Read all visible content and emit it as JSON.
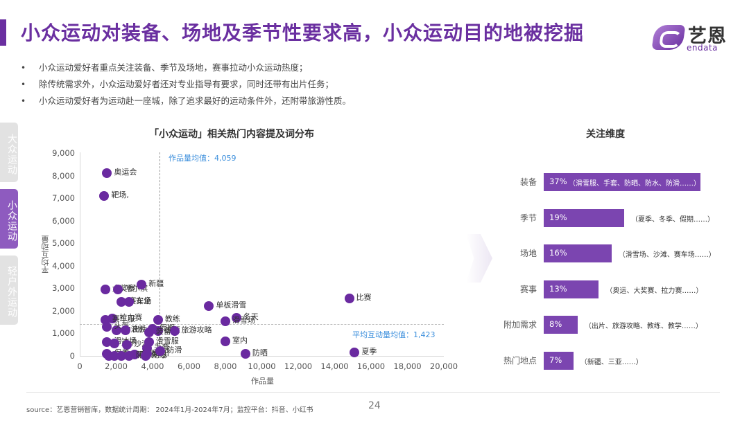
{
  "header": {
    "title": "小众运动对装备、场地及季节性要求高，小众运动目的地被挖掘",
    "logo_cn": "艺恩",
    "logo_en": "endata"
  },
  "bullets": [
    "小众运动爱好者重点关注装备、季节及场地，赛事拉动小众运动热度；",
    "除传统需求外，小众运动爱好者还对专业指导有要求，同时还带有出片任务；",
    "小众运动爱好者为运动赴一座城，除了追求最好的运动条件外，还附带旅游性质。"
  ],
  "side_tabs": [
    {
      "label": "大众运动",
      "active": false
    },
    {
      "label": "小众运动",
      "active": true
    },
    {
      "label": "轻户外运动",
      "active": false
    }
  ],
  "colors": {
    "brand": "#6a2fa0",
    "point": "#6a2aa0",
    "bar": "#7b45b0",
    "avg_label": "#3c8fdc",
    "tab_active": "#8e5bbf",
    "tab_inactive": "#e2e2e2"
  },
  "chart_data": [
    {
      "type": "scatter",
      "title": "「小众运动」相关热门内容提及词分布",
      "xlabel": "作品量",
      "ylabel": "平均互动量",
      "xlim": [
        0,
        20000
      ],
      "ylim": [
        0,
        9000
      ],
      "x_ticks": [
        "0",
        "2,000",
        "4,000",
        "6,000",
        "8,000",
        "10,000",
        "12,000",
        "14,000",
        "16,000",
        "18,000",
        "20,000"
      ],
      "y_ticks": [
        "0",
        "1,000",
        "2,000",
        "3,000",
        "4,000",
        "5,000",
        "6,000",
        "7,000",
        "8,000",
        "9,000"
      ],
      "reference_lines": {
        "x_mean_label": "作品量均值：4,059",
        "x_mean": 4059,
        "y_mean_label": "平均互动量均值：1,423",
        "y_mean": 1423
      },
      "points": [
        {
          "label": "奥运会",
          "x": 1500,
          "y": 8100
        },
        {
          "label": "靶场,",
          "x": 1350,
          "y": 7100
        },
        {
          "label": "大奖赛",
          "x": 1400,
          "y": 2950
        },
        {
          "label": "哈尔滨",
          "x": 2100,
          "y": 2950
        },
        {
          "label": "新疆",
          "x": 3400,
          "y": 3150
        },
        {
          "label": "拉力赛",
          "x": 1800,
          "y": 1650
        },
        {
          "label": "赛车场",
          "x": 2300,
          "y": 2400
        },
        {
          "label": "安全",
          "x": 2700,
          "y": 2400
        },
        {
          "label": "赛车服",
          "x": 1400,
          "y": 1600
        },
        {
          "label": "冲浪板",
          "x": 2000,
          "y": 1150
        },
        {
          "label": "头盔",
          "x": 1500,
          "y": 1300
        },
        {
          "label": "出片",
          "x": 2500,
          "y": 1150
        },
        {
          "label": "教练",
          "x": 4300,
          "y": 1600
        },
        {
          "label": "假期",
          "x": 4000,
          "y": 1200
        },
        {
          "label": "三亚",
          "x": 4300,
          "y": 1100
        },
        {
          "label": "旅游攻略",
          "x": 5200,
          "y": 1100
        },
        {
          "label": "装备",
          "x": 3800,
          "y": 1050
        },
        {
          "label": "滑冰场",
          "x": 1500,
          "y": 600
        },
        {
          "label": "速干",
          "x": 1900,
          "y": 550
        },
        {
          "label": "沙滩",
          "x": 2600,
          "y": 500
        },
        {
          "label": "滑雪服",
          "x": 3800,
          "y": 600
        },
        {
          "label": "手套",
          "x": 3700,
          "y": 350
        },
        {
          "label": "保养",
          "x": 1500,
          "y": 100
        },
        {
          "label": "羽绒服",
          "x": 1600,
          "y": 0
        },
        {
          "label": "马术帽",
          "x": 1900,
          "y": 0
        },
        {
          "label": "防风",
          "x": 2300,
          "y": 0
        },
        {
          "label": "保暖",
          "x": 3000,
          "y": 50
        },
        {
          "label": "防紫外线",
          "x": 2700,
          "y": 0
        },
        {
          "label": "防水",
          "x": 3600,
          "y": 0
        },
        {
          "label": "遮阳",
          "x": 3700,
          "y": 100
        },
        {
          "label": "防滑",
          "x": 4400,
          "y": 200
        },
        {
          "label": "单板滑雪",
          "x": 7100,
          "y": 2200
        },
        {
          "label": "冬天",
          "x": 8600,
          "y": 1700
        },
        {
          "label": "滑雪场",
          "x": 8000,
          "y": 1550
        },
        {
          "label": "室内",
          "x": 8000,
          "y": 650
        },
        {
          "label": "防晒",
          "x": 9100,
          "y": 100
        },
        {
          "label": "比赛",
          "x": 14800,
          "y": 2550
        },
        {
          "label": "夏季",
          "x": 15100,
          "y": 150
        }
      ]
    },
    {
      "type": "bar",
      "orientation": "horizontal",
      "title": "关注维度",
      "categories": [
        "装备",
        "季节",
        "场地",
        "赛事",
        "附加需求",
        "热门地点"
      ],
      "values": [
        37,
        19,
        16,
        13,
        8,
        7
      ],
      "value_labels": [
        "37%",
        "19%",
        "16%",
        "13%",
        "8%",
        "7%"
      ],
      "notes": [
        "（滑雪服、手套、防晒、防水、防滑……）",
        "（夏季、冬季、假期……）",
        "（滑雪场、沙滩、赛车场……）",
        "（奥运、大奖赛、拉力赛……）",
        "（出片、旅游攻略、教练、教学……）",
        "（新疆、三亚……）"
      ]
    }
  ],
  "footer": {
    "source": "source：艺恩营销智库，数据统计周期： 2024年1月-2024年7月；监控平台：抖音、小红书",
    "page_number": "24"
  }
}
